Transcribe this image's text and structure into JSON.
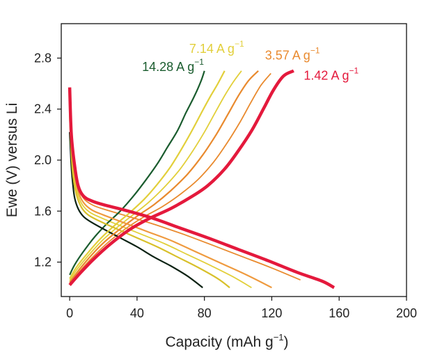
{
  "chart_data": {
    "type": "line",
    "title": "",
    "xlabel": {
      "base": "Capacity (mAh g",
      "sup": "−1",
      "suffix": ")"
    },
    "ylabel": "Ewe (V) versus Li",
    "xlim": [
      -5,
      200
    ],
    "ylim": [
      0.93,
      3.07
    ],
    "xticks": [
      0,
      40,
      80,
      120,
      160,
      200
    ],
    "yticks": [
      1.2,
      1.6,
      2.0,
      2.4,
      2.8
    ],
    "ytick_labels": [
      "1.2",
      "1.6",
      "2.0",
      "2.4",
      "2.8"
    ],
    "grid": false,
    "legend": "inline labels near curve ends",
    "series": [
      {
        "name": "14.28 A g−1",
        "label_base": "14.28 A g",
        "label_sup": "−1",
        "color": "#1a5c2e",
        "discharge_color": "#0c2214",
        "label_at": [
          43,
          2.7
        ],
        "charge": [
          [
            0,
            1.1
          ],
          [
            3,
            1.18
          ],
          [
            8,
            1.28
          ],
          [
            15,
            1.4
          ],
          [
            22,
            1.5
          ],
          [
            30,
            1.6
          ],
          [
            38,
            1.72
          ],
          [
            45,
            1.84
          ],
          [
            52,
            1.97
          ],
          [
            58,
            2.1
          ],
          [
            64,
            2.23
          ],
          [
            69,
            2.37
          ],
          [
            74,
            2.5
          ],
          [
            78,
            2.62
          ],
          [
            80,
            2.7
          ]
        ],
        "discharge": [
          [
            0,
            2.22
          ],
          [
            1,
            1.95
          ],
          [
            2,
            1.8
          ],
          [
            3,
            1.7
          ],
          [
            5,
            1.62
          ],
          [
            8,
            1.56
          ],
          [
            12,
            1.52
          ],
          [
            20,
            1.46
          ],
          [
            30,
            1.39
          ],
          [
            40,
            1.32
          ],
          [
            50,
            1.24
          ],
          [
            60,
            1.17
          ],
          [
            70,
            1.09
          ],
          [
            79,
            1.0
          ]
        ]
      },
      {
        "name": "7.14 A g−1",
        "label_base": "7.14 A g",
        "label_sup": "−1",
        "color": "#e2cf3a",
        "discharge_color": "#d8c02a",
        "label_at": [
          71,
          2.84
        ],
        "charge": [
          [
            0,
            1.07
          ],
          [
            4,
            1.16
          ],
          [
            10,
            1.26
          ],
          [
            18,
            1.38
          ],
          [
            26,
            1.48
          ],
          [
            35,
            1.58
          ],
          [
            44,
            1.69
          ],
          [
            52,
            1.81
          ],
          [
            60,
            1.95
          ],
          [
            67,
            2.1
          ],
          [
            73,
            2.24
          ],
          [
            79,
            2.39
          ],
          [
            84,
            2.51
          ],
          [
            88,
            2.6
          ],
          [
            92,
            2.7
          ]
        ],
        "discharge": [
          [
            0,
            2.36
          ],
          [
            1,
            2.05
          ],
          [
            2,
            1.88
          ],
          [
            4,
            1.73
          ],
          [
            7,
            1.63
          ],
          [
            11,
            1.57
          ],
          [
            18,
            1.52
          ],
          [
            28,
            1.46
          ],
          [
            40,
            1.39
          ],
          [
            52,
            1.32
          ],
          [
            64,
            1.24
          ],
          [
            76,
            1.16
          ],
          [
            88,
            1.07
          ],
          [
            95,
            1.0
          ]
        ]
      },
      {
        "name": "3.57 A g−1",
        "label_base": "3.57 A g",
        "label_sup": "−1",
        "color": "#e98a2e",
        "discharge_color": "#ef9a3e",
        "label_at": [
          116,
          2.79
        ],
        "charge": [
          [
            0,
            1.04
          ],
          [
            5,
            1.13
          ],
          [
            12,
            1.24
          ],
          [
            20,
            1.35
          ],
          [
            30,
            1.46
          ],
          [
            40,
            1.56
          ],
          [
            50,
            1.65
          ],
          [
            60,
            1.76
          ],
          [
            70,
            1.89
          ],
          [
            79,
            2.04
          ],
          [
            87,
            2.2
          ],
          [
            94,
            2.36
          ],
          [
            100,
            2.5
          ],
          [
            106,
            2.62
          ],
          [
            112,
            2.7
          ]
        ],
        "discharge": [
          [
            0,
            2.47
          ],
          [
            1,
            2.15
          ],
          [
            3,
            1.9
          ],
          [
            5,
            1.76
          ],
          [
            8,
            1.67
          ],
          [
            13,
            1.61
          ],
          [
            20,
            1.57
          ],
          [
            32,
            1.51
          ],
          [
            46,
            1.44
          ],
          [
            60,
            1.37
          ],
          [
            75,
            1.28
          ],
          [
            90,
            1.19
          ],
          [
            105,
            1.1
          ],
          [
            120,
            1.0
          ]
        ]
      },
      {
        "name": "1.42 A g−1",
        "label_base": "1.42 A g",
        "label_sup": "−1",
        "color": "#e4193c",
        "discharge_color": "#e4193c",
        "label_at": [
          139,
          2.63
        ],
        "thick": true,
        "charge": [
          [
            0,
            1.02
          ],
          [
            6,
            1.11
          ],
          [
            14,
            1.22
          ],
          [
            24,
            1.34
          ],
          [
            35,
            1.45
          ],
          [
            47,
            1.54
          ],
          [
            60,
            1.62
          ],
          [
            72,
            1.71
          ],
          [
            82,
            1.8
          ],
          [
            92,
            1.93
          ],
          [
            100,
            2.07
          ],
          [
            108,
            2.23
          ],
          [
            115,
            2.4
          ],
          [
            121,
            2.55
          ],
          [
            127,
            2.66
          ],
          [
            133,
            2.7
          ]
        ],
        "discharge": [
          [
            0,
            2.57
          ],
          [
            1,
            2.2
          ],
          [
            3,
            1.95
          ],
          [
            5,
            1.8
          ],
          [
            8,
            1.72
          ],
          [
            13,
            1.68
          ],
          [
            20,
            1.65
          ],
          [
            32,
            1.61
          ],
          [
            48,
            1.55
          ],
          [
            65,
            1.47
          ],
          [
            82,
            1.39
          ],
          [
            100,
            1.3
          ],
          [
            118,
            1.21
          ],
          [
            135,
            1.12
          ],
          [
            150,
            1.05
          ],
          [
            157,
            1.0
          ]
        ]
      }
    ],
    "extra_traces": [
      {
        "color": "#e2cf3a",
        "charge_offset": -4,
        "discharge_end": 108,
        "between": [
          "7.14",
          "3.57"
        ]
      },
      {
        "color": "#e98a2e",
        "charge_offset": -4,
        "discharge_end": 137,
        "between": [
          "3.57",
          "1.42"
        ]
      }
    ]
  }
}
